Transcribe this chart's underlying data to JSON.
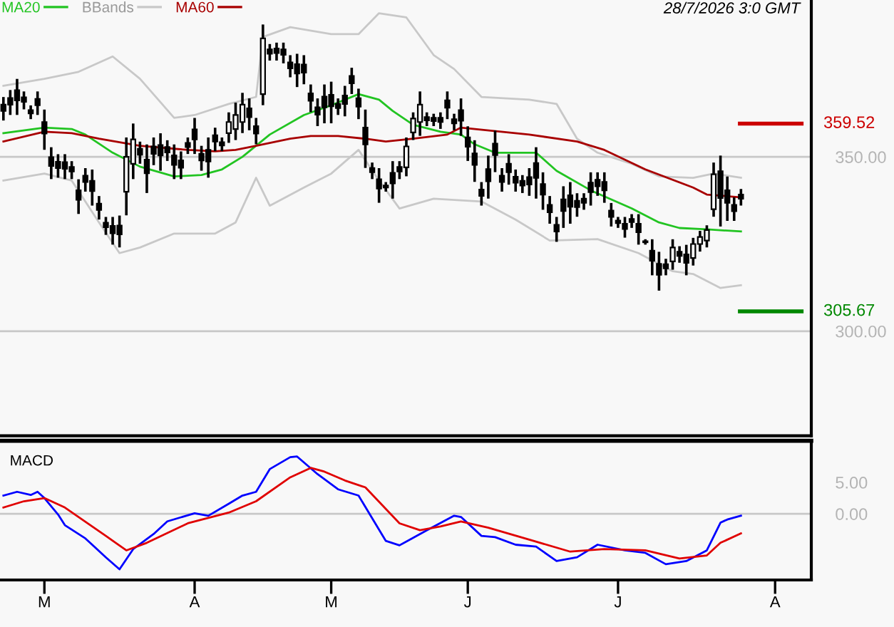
{
  "chart_data": [
    {
      "type": "candlestick",
      "tick_labels": "y",
      "grid": "y",
      "legend": "top left",
      "annotations": [
        "28/7/2026 3:0 GMT"
      ],
      "ylim": [
        270,
        395
      ],
      "yticks": [
        {
          "value": 350,
          "label": "350.00"
        },
        {
          "value": 300,
          "label": "300.00"
        }
      ],
      "color": "#000000",
      "ohlc": [
        [
          365.0,
          366.8,
          360.8,
          363.2
        ],
        [
          366.9,
          368.8,
          362.4,
          365.0
        ],
        [
          369.1,
          372.0,
          362.4,
          366.2
        ],
        [
          367.1,
          368.4,
          364.0,
          365.8
        ],
        [
          363.4,
          364.4,
          361.2,
          362.5
        ],
        [
          366.6,
          368.4,
          362.4,
          364.8
        ],
        [
          360.0,
          363.2,
          352.4,
          356.7
        ],
        [
          349.9,
          352.4,
          344.0,
          347.4
        ],
        [
          348.6,
          350.4,
          344.4,
          346.8
        ],
        [
          348.5,
          350.4,
          344.0,
          346.6
        ],
        [
          347.1,
          348.4,
          344.0,
          345.8
        ],
        [
          340.4,
          343.2,
          334.0,
          337.7
        ],
        [
          344.6,
          346.4,
          340.4,
          342.8
        ],
        [
          343.1,
          346.0,
          336.4,
          340.2
        ],
        [
          336.6,
          338.4,
          332.4,
          334.8
        ],
        [
          331.1,
          332.4,
          328.0,
          329.8
        ],
        [
          330.2,
          332.4,
          325.2,
          328.1
        ],
        [
          330.3,
          332.8,
          324.4,
          327.8
        ],
        [
          340.0,
          355.2,
          333.6,
          350.0
        ],
        [
          348.0,
          359.2,
          344.0,
          355.0
        ],
        [
          352.3,
          354.0,
          348.4,
          350.6
        ],
        [
          349.2,
          353.2,
          340.0,
          345.3
        ],
        [
          353.0,
          355.2,
          348.0,
          350.9
        ],
        [
          353.4,
          356.4,
          346.4,
          350.4
        ],
        [
          352.8,
          354.4,
          349.2,
          351.3
        ],
        [
          350.4,
          353.2,
          344.0,
          347.7
        ],
        [
          349.0,
          351.2,
          344.0,
          346.9
        ],
        [
          354.0,
          355.2,
          351.2,
          352.8
        ],
        [
          357.9,
          360.8,
          351.2,
          355.0
        ],
        [
          350.9,
          352.8,
          346.4,
          349.0
        ],
        [
          352.0,
          355.2,
          344.4,
          348.7
        ],
        [
          356.2,
          358.0,
          352.0,
          354.4
        ],
        [
          354.2,
          355.2,
          352.0,
          353.3
        ],
        [
          356.8,
          362.4,
          354.4,
          360.0
        ],
        [
          358.0,
          365.2,
          355.2,
          362.0
        ],
        [
          360.0,
          368.0,
          357.2,
          365.0
        ],
        [
          363.9,
          366.4,
          358.0,
          361.4
        ],
        [
          358.8,
          360.8,
          354.0,
          356.7
        ],
        [
          368.0,
          387.6,
          365.2,
          384.0
        ],
        [
          380.8,
          382.0,
          378.0,
          379.6
        ],
        [
          381.1,
          382.4,
          378.0,
          379.8
        ],
        [
          380.8,
          382.4,
          377.2,
          379.3
        ],
        [
          377.1,
          378.8,
          373.2,
          375.4
        ],
        [
          376.6,
          379.2,
          370.4,
          373.9
        ],
        [
          376.5,
          378.8,
          371.2,
          374.2
        ],
        [
          368.2,
          370.4,
          363.2,
          366.1
        ],
        [
          364.2,
          366.4,
          359.2,
          362.1
        ],
        [
          367.3,
          370.4,
          360.0,
          364.2
        ],
        [
          367.8,
          371.2,
          360.0,
          364.5
        ],
        [
          365.2,
          366.4,
          362.4,
          364.0
        ],
        [
          367.6,
          370.0,
          362.0,
          365.2
        ],
        [
          373.2,
          375.2,
          368.4,
          371.1
        ],
        [
          366.8,
          369.2,
          361.2,
          364.4
        ],
        [
          358.4,
          363.2,
          347.2,
          353.6
        ],
        [
          346.8,
          348.0,
          344.0,
          345.6
        ],
        [
          343.6,
          346.4,
          337.2,
          340.9
        ],
        [
          341.8,
          342.4,
          340.4,
          341.2
        ],
        [
          345.4,
          348.4,
          338.4,
          342.4
        ],
        [
          347.1,
          348.4,
          344.0,
          345.8
        ],
        [
          347.0,
          355.2,
          344.8,
          353.0
        ],
        [
          357.0,
          362.4,
          355.2,
          361.0
        ],
        [
          360.0,
          368.4,
          356.4,
          365.0
        ],
        [
          361.4,
          362.4,
          359.2,
          360.5
        ],
        [
          361.2,
          362.0,
          359.2,
          360.3
        ],
        [
          361.2,
          362.4,
          358.4,
          360.0
        ],
        [
          366.2,
          368.4,
          361.2,
          364.1
        ],
        [
          360.8,
          362.0,
          358.0,
          359.6
        ],
        [
          363.4,
          366.4,
          356.4,
          360.4
        ],
        [
          355.6,
          358.4,
          349.2,
          352.9
        ],
        [
          351.0,
          354.4,
          343.2,
          347.7
        ],
        [
          340.6,
          342.4,
          336.4,
          338.8
        ],
        [
          346.5,
          350.0,
          338.4,
          343.0
        ],
        [
          353.8,
          357.2,
          346.0,
          350.5
        ],
        [
          344.6,
          346.4,
          340.4,
          342.8
        ],
        [
          348.0,
          350.4,
          342.4,
          345.6
        ],
        [
          344.3,
          346.0,
          340.4,
          342.6
        ],
        [
          343.1,
          344.4,
          340.0,
          341.8
        ],
        [
          344.2,
          346.4,
          339.2,
          342.1
        ],
        [
          348.2,
          352.4,
          338.4,
          344.0
        ],
        [
          342.2,
          345.2,
          335.2,
          339.2
        ],
        [
          336.2,
          338.4,
          331.2,
          334.1
        ],
        [
          330.5,
          332.4,
          326.0,
          328.6
        ],
        [
          337.8,
          341.2,
          330.0,
          334.5
        ],
        [
          339.0,
          342.4,
          331.2,
          335.7
        ],
        [
          337.4,
          339.2,
          333.2,
          335.6
        ],
        [
          338.0,
          339.2,
          335.2,
          336.8
        ],
        [
          342.6,
          345.2,
          336.4,
          339.9
        ],
        [
          343.4,
          345.2,
          339.2,
          341.6
        ],
        [
          342.8,
          345.2,
          337.2,
          340.4
        ],
        [
          334.6,
          336.4,
          330.4,
          332.8
        ],
        [
          331.7,
          332.4,
          330.0,
          331.0
        ],
        [
          330.8,
          332.4,
          327.2,
          329.3
        ],
        [
          332.2,
          333.2,
          330.0,
          331.3
        ],
        [
          330.8,
          333.2,
          325.2,
          328.4
        ],
        [
          325.8,
          326.0,
          325.2,
          325.5
        ],
        [
          323.1,
          326.0,
          316.4,
          320.2
        ],
        [
          319.3,
          322.4,
          312.0,
          316.2
        ],
        [
          319.2,
          320.4,
          316.4,
          318.0
        ],
        [
          320.0,
          326.0,
          318.0,
          324.0
        ],
        [
          322.8,
          324.0,
          320.0,
          321.6
        ],
        [
          322.0,
          324.4,
          316.4,
          319.6
        ],
        [
          321.0,
          326.4,
          319.2,
          325.0
        ],
        [
          325.0,
          328.4,
          323.2,
          327.0
        ],
        [
          326.0,
          330.0,
          324.4,
          329.0
        ],
        [
          335.0,
          348.0,
          333.2,
          345.0
        ],
        [
          345.9,
          350.0,
          330.4,
          338.2
        ],
        [
          340.4,
          344.0,
          332.0,
          336.8
        ],
        [
          336.2,
          338.0,
          332.0,
          334.4
        ],
        [
          339.2,
          340.4,
          336.4,
          338.0
        ],
        null,
        null,
        null,
        null,
        null
      ],
      "series": [
        {
          "name": "MA20",
          "type": "line",
          "color": "#22c422",
          "values": [
            356.8,
            null,
            null,
            null,
            null,
            null,
            358.4,
            null,
            null,
            null,
            358.0,
            null,
            356.4,
            null,
            null,
            null,
            351.2,
            null,
            null,
            null,
            347.2,
            null,
            null,
            null,
            null,
            344.4,
            null,
            null,
            null,
            344.8,
            null,
            null,
            346.4,
            null,
            null,
            350.0,
            null,
            null,
            null,
            356.4,
            null,
            null,
            null,
            null,
            362.0,
            null,
            null,
            null,
            364.8,
            null,
            null,
            null,
            368.0,
            null,
            null,
            366.4,
            null,
            363.2,
            null,
            null,
            359.2,
            null,
            null,
            null,
            357.2,
            null,
            null,
            356.4,
            null,
            353.6,
            null,
            null,
            351.2,
            null,
            null,
            null,
            null,
            null,
            351.2,
            null,
            null,
            346.0,
            null,
            null,
            null,
            null,
            340.4,
            null,
            null,
            null,
            null,
            null,
            335.2,
            null,
            null,
            null,
            331.2,
            null,
            null,
            329.6,
            null,
            null,
            null,
            329.2,
            null,
            null,
            null,
            null,
            328.6,
            null,
            null,
            null,
            null,
            null
          ]
        },
        {
          "name": "BBands",
          "type": "line",
          "color": "#c8c8c8",
          "values": [
            370.4,
            null,
            null,
            null,
            null,
            null,
            372.4,
            null,
            null,
            null,
            null,
            374.4,
            null,
            null,
            null,
            null,
            378.8,
            null,
            null,
            null,
            372.4,
            null,
            null,
            null,
            null,
            361.2,
            null,
            null,
            362.0,
            null,
            null,
            null,
            null,
            365.2,
            null,
            null,
            null,
            367.2,
            384.4,
            null,
            null,
            null,
            387.2,
            null,
            null,
            null,
            null,
            null,
            385.2,
            null,
            null,
            null,
            385.2,
            null,
            null,
            391.2,
            null,
            null,
            null,
            390.0,
            null,
            null,
            null,
            379.2,
            null,
            null,
            375.2,
            null,
            null,
            null,
            367.2,
            null,
            null,
            null,
            null,
            null,
            null,
            366.4,
            null,
            null,
            null,
            365.2,
            null,
            null,
            355.2,
            null,
            null,
            351.2,
            null,
            null,
            null,
            null,
            348.0,
            null,
            null,
            null,
            344.4,
            null,
            null,
            null,
            null,
            344.0,
            null,
            null,
            345.2,
            null,
            null,
            null,
            344.0,
            null,
            null,
            null,
            null,
            null
          ]
        },
        {
          "type": "line",
          "color": "#c8c8c8",
          "values": [
            343.2,
            null,
            null,
            null,
            null,
            null,
            345.2,
            null,
            null,
            null,
            343.2,
            null,
            null,
            null,
            331.2,
            null,
            null,
            322.4,
            null,
            null,
            324.0,
            null,
            null,
            null,
            null,
            328.0,
            null,
            null,
            null,
            null,
            null,
            328.0,
            null,
            null,
            331.2,
            null,
            null,
            344.0,
            null,
            336.0,
            null,
            null,
            null,
            null,
            341.2,
            null,
            null,
            null,
            345.2,
            null,
            null,
            null,
            352.0,
            null,
            null,
            343.2,
            null,
            null,
            335.2,
            null,
            null,
            null,
            null,
            338.0,
            null,
            null,
            null,
            null,
            null,
            null,
            337.2,
            null,
            null,
            null,
            null,
            332.0,
            null,
            null,
            null,
            null,
            326.0,
            null,
            null,
            null,
            null,
            null,
            null,
            326.4,
            null,
            null,
            null,
            null,
            null,
            322.4,
            null,
            null,
            null,
            null,
            317.2,
            null,
            null,
            316.4,
            null,
            null,
            null,
            312.4,
            null,
            null,
            313.2,
            null,
            null,
            null,
            null,
            null
          ]
        },
        {
          "name": "MA60",
          "type": "line",
          "color": "#a80000",
          "values": [
            354.4,
            null,
            null,
            null,
            null,
            null,
            357.2,
            null,
            null,
            null,
            356.8,
            null,
            null,
            null,
            355.2,
            null,
            null,
            null,
            null,
            null,
            353.2,
            null,
            null,
            null,
            null,
            null,
            null,
            352.0,
            null,
            null,
            null,
            351.6,
            null,
            null,
            352.0,
            null,
            null,
            353.2,
            null,
            null,
            null,
            null,
            355.2,
            null,
            null,
            356.0,
            null,
            null,
            null,
            356.0,
            null,
            null,
            null,
            355.2,
            null,
            null,
            354.4,
            null,
            null,
            null,
            355.2,
            null,
            null,
            null,
            null,
            356.4,
            null,
            358.4,
            null,
            null,
            null,
            null,
            null,
            null,
            null,
            null,
            null,
            356.4,
            null,
            null,
            null,
            null,
            null,
            null,
            354.4,
            null,
            null,
            null,
            352.0,
            null,
            null,
            null,
            null,
            null,
            346.4,
            null,
            null,
            null,
            null,
            null,
            null,
            341.2,
            null,
            339.2,
            null,
            null,
            null,
            null,
            338.4,
            null,
            null,
            null,
            null,
            null
          ]
        }
      ],
      "ref_lines": [
        {
          "axis": "y",
          "value": 359.52,
          "label": "359.52",
          "color": "#cc0000"
        },
        {
          "axis": "y",
          "value": 305.67,
          "label": "305.67",
          "color": "#008800"
        }
      ]
    },
    {
      "type": "line",
      "title": "MACD",
      "categories": [
        null,
        null,
        null,
        null,
        null,
        null,
        "M",
        null,
        null,
        null,
        null,
        null,
        null,
        null,
        null,
        null,
        null,
        null,
        null,
        null,
        null,
        null,
        null,
        null,
        null,
        null,
        null,
        null,
        "A",
        null,
        null,
        null,
        null,
        null,
        null,
        null,
        null,
        null,
        null,
        null,
        null,
        null,
        null,
        null,
        null,
        null,
        null,
        null,
        "M",
        null,
        null,
        null,
        null,
        null,
        null,
        null,
        null,
        null,
        null,
        null,
        null,
        null,
        null,
        null,
        null,
        null,
        null,
        null,
        "J",
        null,
        null,
        null,
        null,
        null,
        null,
        null,
        null,
        null,
        null,
        null,
        null,
        null,
        null,
        null,
        null,
        null,
        null,
        null,
        null,
        null,
        "J",
        null,
        null,
        null,
        null,
        null,
        null,
        null,
        null,
        null,
        null,
        null,
        null,
        null,
        null,
        null,
        null,
        null,
        null,
        null,
        null,
        null,
        null,
        "A"
      ],
      "ylim": [
        -10.5,
        11.6
      ],
      "yticks": [
        {
          "value": 5,
          "label": "5.00"
        },
        {
          "value": 0,
          "label": "0.00"
        }
      ],
      "series": [
        {
          "color": "#0000ff",
          "values": [
            2.9,
            null,
            3.5,
            null,
            3.0,
            3.5,
            2.5,
            null,
            -0.1,
            -1.8,
            null,
            null,
            -3.9,
            null,
            null,
            -6.9,
            null,
            -8.8,
            null,
            -5.6,
            null,
            null,
            -3.2,
            null,
            -1.2,
            null,
            null,
            null,
            0.1,
            null,
            -0.3,
            null,
            null,
            1.6,
            null,
            2.9,
            null,
            3.5,
            null,
            7.1,
            null,
            null,
            9.0,
            9.1,
            null,
            null,
            6.3,
            null,
            null,
            3.9,
            null,
            null,
            2.9,
            null,
            null,
            null,
            -4.3,
            null,
            -5.0,
            null,
            null,
            null,
            -2.6,
            null,
            null,
            null,
            -0.3,
            -0.5,
            null,
            null,
            -3.5,
            null,
            -3.7,
            null,
            null,
            -4.9,
            null,
            null,
            -5.2,
            null,
            null,
            -7.5,
            null,
            null,
            -6.9,
            null,
            null,
            -4.9,
            null,
            null,
            null,
            -5.8,
            null,
            null,
            -6.2,
            null,
            null,
            -8.0,
            null,
            null,
            -7.5,
            null,
            null,
            -5.8,
            null,
            -1.4,
            -0.9,
            null,
            -0.3,
            null,
            null,
            null,
            null,
            null
          ]
        },
        {
          "color": "#e00000",
          "values": [
            1.0,
            null,
            null,
            2.0,
            null,
            null,
            2.5,
            null,
            null,
            1.0,
            null,
            null,
            null,
            null,
            null,
            -3.5,
            null,
            null,
            -5.8,
            null,
            null,
            -4.6,
            null,
            null,
            null,
            null,
            null,
            -1.5,
            null,
            null,
            null,
            null,
            null,
            0.2,
            null,
            null,
            null,
            2.0,
            null,
            null,
            null,
            null,
            5.8,
            null,
            null,
            7.3,
            null,
            6.7,
            null,
            null,
            5.3,
            null,
            null,
            4.2,
            null,
            null,
            null,
            null,
            -1.5,
            null,
            null,
            -2.6,
            null,
            null,
            -2.0,
            null,
            null,
            -1.2,
            null,
            null,
            null,
            -2.2,
            null,
            null,
            null,
            null,
            null,
            -4.1,
            null,
            null,
            null,
            null,
            null,
            -6.0,
            null,
            null,
            null,
            null,
            -5.6,
            null,
            null,
            null,
            null,
            null,
            -5.8,
            null,
            null,
            null,
            null,
            -7.1,
            null,
            null,
            null,
            -6.6,
            null,
            -4.6,
            null,
            null,
            -3.1,
            null,
            null,
            null,
            null,
            null
          ]
        }
      ],
      "ref_lines": [
        {
          "axis": "y",
          "value": 0,
          "color": "#c8c8c8"
        }
      ]
    }
  ]
}
